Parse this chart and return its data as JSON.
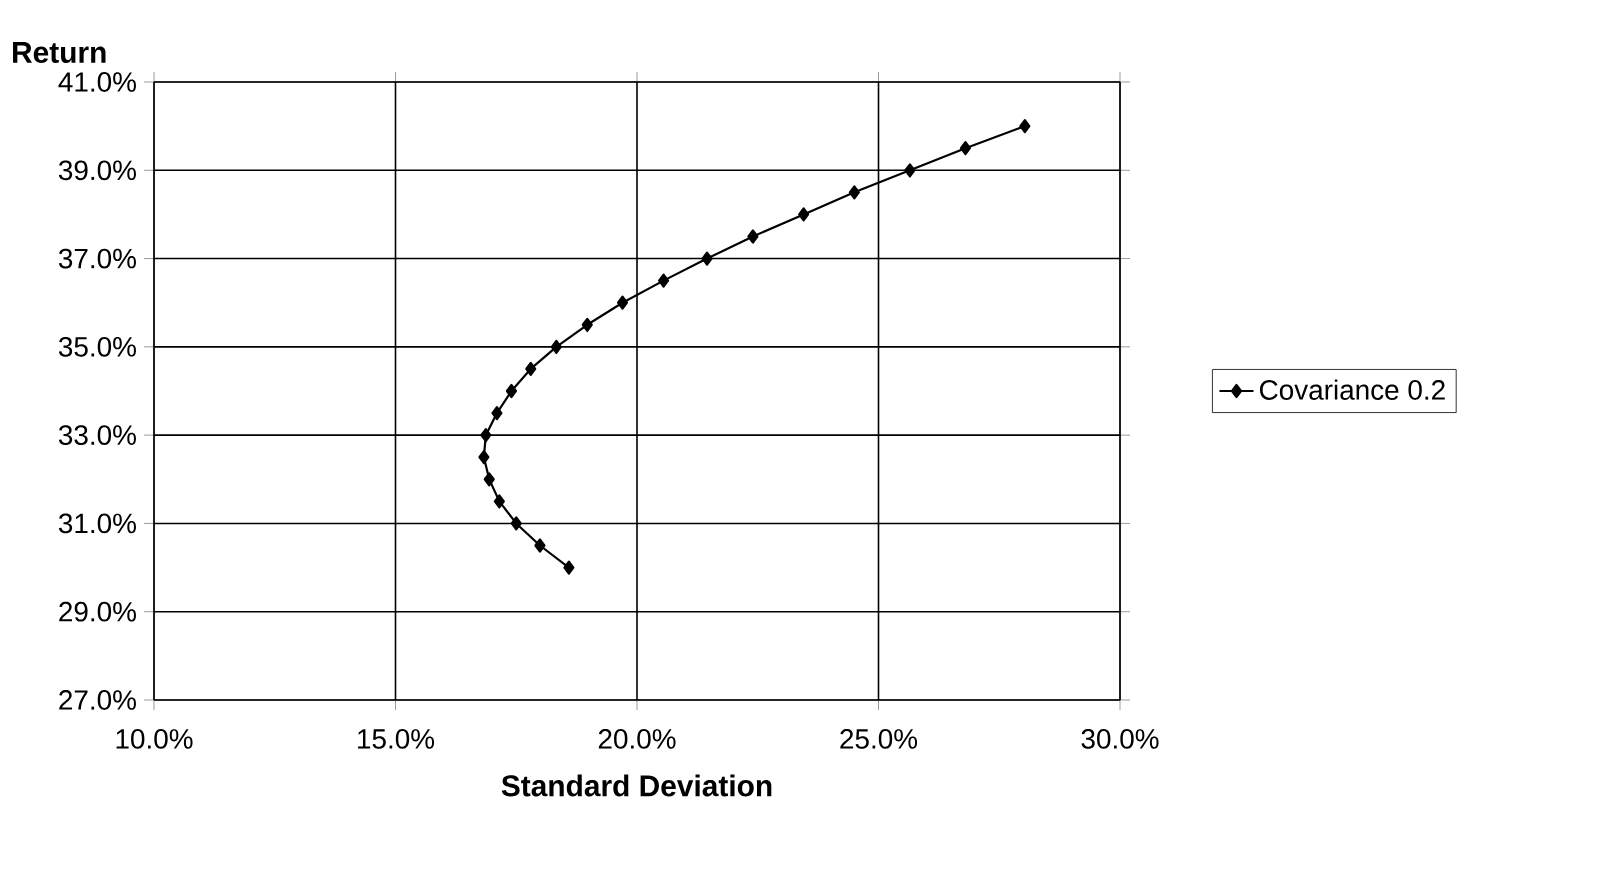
{
  "chart_data": {
    "type": "line",
    "xlabel": "Standard Deviation",
    "ylabel": "Return",
    "x": [
      18.59,
      17.99,
      17.5,
      17.15,
      16.94,
      16.83,
      16.87,
      17.1,
      17.4,
      17.8,
      18.33,
      18.97,
      19.7,
      20.55,
      21.45,
      22.4,
      23.45,
      24.5,
      25.65,
      26.8,
      28.03
    ],
    "series": [
      {
        "name": "Covariance 0.2",
        "color": "#000000",
        "values": [
          30.0,
          30.5,
          31.0,
          31.5,
          32.0,
          32.5,
          33.0,
          33.5,
          34.0,
          34.5,
          35.0,
          35.5,
          36.0,
          36.5,
          37.0,
          37.5,
          38.0,
          38.5,
          39.0,
          39.5,
          40.0
        ]
      }
    ],
    "xlim": [
      10,
      30
    ],
    "ylim": [
      27,
      41
    ],
    "xticks": [
      {
        "value": 10,
        "label": "10.0%"
      },
      {
        "value": 15,
        "label": "15.0%"
      },
      {
        "value": 20,
        "label": "20.0%"
      },
      {
        "value": 25,
        "label": "25.0%"
      },
      {
        "value": 30,
        "label": "30.0%"
      }
    ],
    "yticks": [
      {
        "value": 27,
        "label": "27.0%"
      },
      {
        "value": 29,
        "label": "29.0%"
      },
      {
        "value": 31,
        "label": "31.0%"
      },
      {
        "value": 33,
        "label": "33.0%"
      },
      {
        "value": 35,
        "label": "35.0%"
      },
      {
        "value": 37,
        "label": "37.0%"
      },
      {
        "value": 39,
        "label": "39.0%"
      },
      {
        "value": 41,
        "label": "41.0%"
      }
    ],
    "grid": true,
    "legend": "right",
    "marker": "diamond",
    "line_style": "solid"
  }
}
